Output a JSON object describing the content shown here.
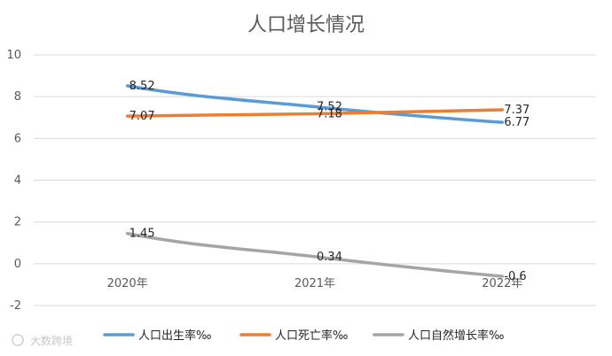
{
  "chart_data": {
    "type": "line",
    "title": "人口增长情况",
    "categories": [
      "2020年",
      "2021年",
      "2022年"
    ],
    "series": [
      {
        "name": "人口出生率‰",
        "values": [
          8.52,
          7.52,
          6.77
        ],
        "labels": [
          "8.52",
          "7.52",
          "6.77"
        ],
        "color": "#5b9bd5"
      },
      {
        "name": "人口死亡率‰",
        "values": [
          7.07,
          7.18,
          7.37
        ],
        "labels": [
          "7.07",
          "7.18",
          "7.37"
        ],
        "color": "#ed7d31"
      },
      {
        "name": "人口自然增长率‰",
        "values": [
          1.45,
          0.34,
          -0.6
        ],
        "labels": [
          "1.45",
          "0.34",
          "-0.6"
        ],
        "color": "#a5a5a5"
      }
    ],
    "y_ticks": [
      "-2",
      "0",
      "2",
      "4",
      "6",
      "8",
      "10"
    ],
    "ylim": [
      -2,
      10
    ],
    "grid": true,
    "legend": "bottom"
  },
  "watermark": "大数跨境"
}
